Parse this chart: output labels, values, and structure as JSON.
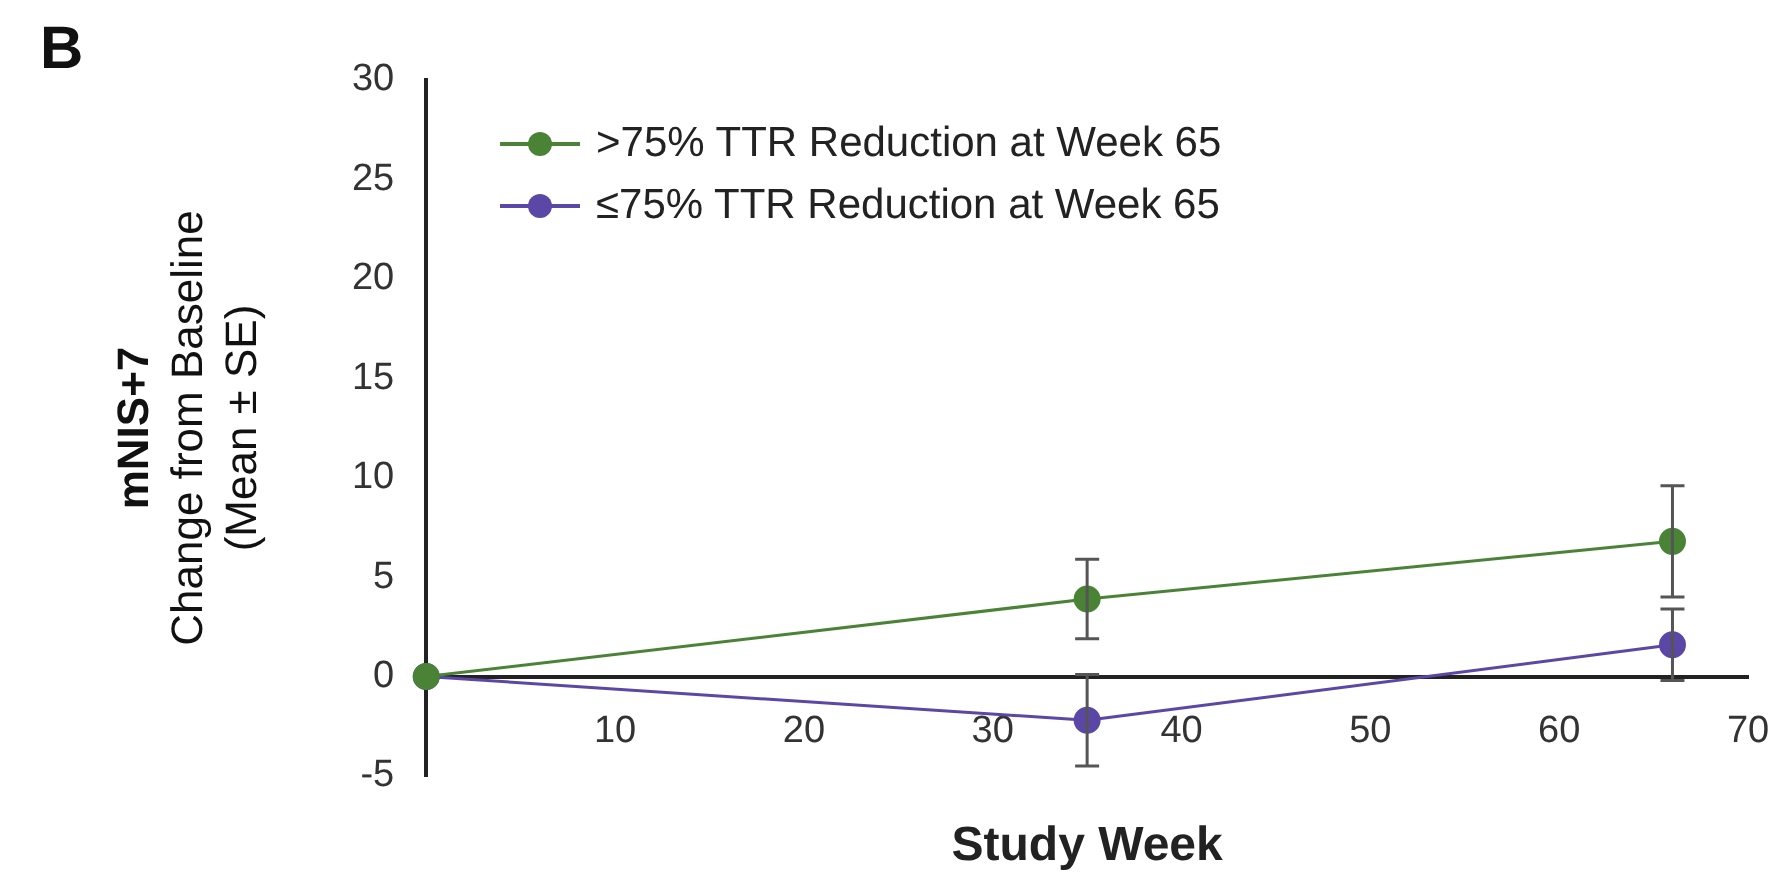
{
  "chart_data": {
    "type": "line",
    "title": "B",
    "xlabel": "Study Week",
    "ylabel": "mNIS+7\nChange from Baseline\n(Mean ± SE)",
    "xlim": [
      0,
      70
    ],
    "xticks": [
      10,
      20,
      30,
      40,
      50,
      60,
      70
    ],
    "ylim": [
      -5,
      30
    ],
    "yticks": [
      -5,
      0,
      5,
      10,
      15,
      20,
      25,
      30
    ],
    "legend": "top left",
    "marker": "circle",
    "line_style": "solid",
    "series": [
      {
        "name": ">75% TTR Reduction at Week 65",
        "color": "#4a8236",
        "x": [
          0,
          35,
          66
        ],
        "values": [
          0,
          3.9,
          6.8
        ],
        "errors": [
          null,
          2.0,
          2.8
        ]
      },
      {
        "name": "≤75% TTR Reduction at Week 65",
        "color": "#5b47a6",
        "x": [
          0,
          35,
          66
        ],
        "values": [
          0,
          -2.2,
          1.6
        ],
        "errors": [
          null,
          2.3,
          1.8
        ]
      }
    ]
  }
}
